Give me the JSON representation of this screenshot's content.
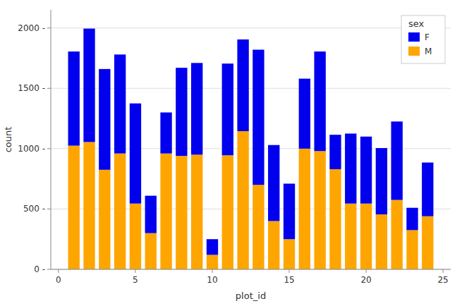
{
  "chart_data": {
    "type": "bar",
    "stacked": true,
    "x": [
      1,
      2,
      3,
      4,
      5,
      6,
      7,
      8,
      9,
      10,
      11,
      12,
      13,
      14,
      15,
      16,
      17,
      18,
      19,
      20,
      21,
      22,
      23,
      24
    ],
    "series": [
      {
        "name": "M",
        "color": "#FFA500",
        "values": [
          1025,
          1055,
          825,
          960,
          545,
          300,
          960,
          940,
          950,
          120,
          945,
          1145,
          700,
          400,
          250,
          1000,
          980,
          830,
          545,
          545,
          455,
          575,
          325,
          440
        ]
      },
      {
        "name": "F",
        "color": "#0000EE",
        "values": [
          780,
          940,
          835,
          820,
          830,
          310,
          340,
          730,
          760,
          130,
          760,
          760,
          1120,
          630,
          460,
          580,
          825,
          285,
          580,
          555,
          550,
          650,
          185,
          445
        ]
      }
    ],
    "xlabel": "plot_id",
    "ylabel": "count",
    "xlim": [
      -0.5,
      25.5
    ],
    "xticks": [
      0,
      5,
      10,
      15,
      20,
      25
    ],
    "ylim": [
      0,
      2150
    ],
    "yticks": [
      {
        "value": 0,
        "label": "0 -"
      },
      {
        "value": 500,
        "label": "500 -"
      },
      {
        "value": 1000,
        "label": "1000 -"
      },
      {
        "value": 1500,
        "label": "1500 -"
      },
      {
        "value": 2000,
        "label": "2000 -"
      }
    ],
    "grid": true,
    "legend": "upper right",
    "legend_title": "sex"
  }
}
